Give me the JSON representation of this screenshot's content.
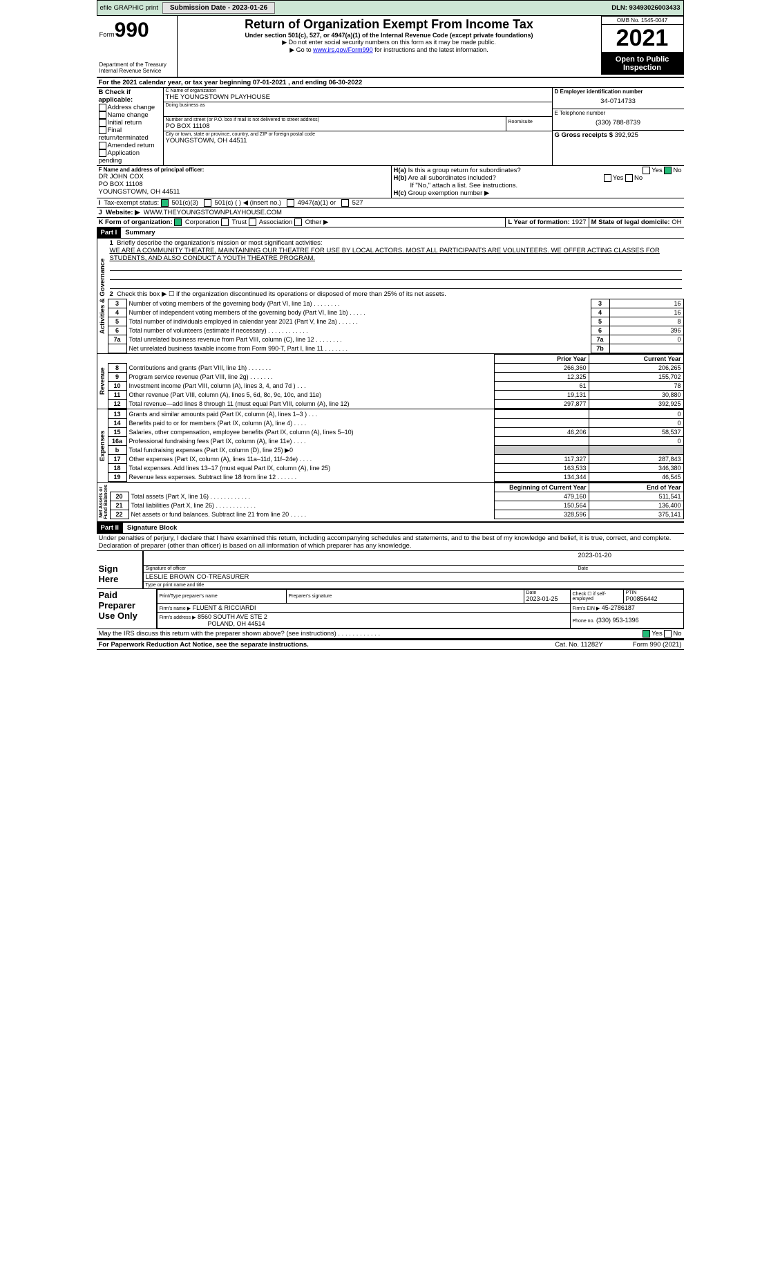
{
  "topbar": {
    "efile": "efile GRAPHIC print",
    "sub": "Submission Date - 2023-01-26",
    "dln": "DLN: 93493026003433"
  },
  "hdr": {
    "form": "Form",
    "n": "990",
    "title": "Return of Organization Exempt From Income Tax",
    "sub1": "Under section 501(c), 527, or 4947(a)(1) of the Internal Revenue Code (except private foundations)",
    "sub2": "▶ Do not enter social security numbers on this form as it may be made public.",
    "sub3": "▶ Go to ",
    "link": "www.irs.gov/Form990",
    "sub3b": " for instructions and the latest information.",
    "dept": "Department of the Treasury",
    "irs": "Internal Revenue Service",
    "omb": "OMB No. 1545-0047",
    "year": "2021",
    "open": "Open to Public",
    "insp": "Inspection"
  },
  "A": {
    "txt": "For the 2021 calendar year, or tax year beginning 07-01-2021   , and ending 06-30-2022"
  },
  "B": {
    "title": "B Check if applicable:",
    "opts": [
      "Address change",
      "Name change",
      "Initial return",
      "Final return/terminated",
      "Amended return",
      "Application pending"
    ]
  },
  "C": {
    "lbl": "C Name of organization",
    "org": "THE YOUNGSTOWN PLAYHOUSE",
    "dba": "Doing business as",
    "addr_lbl": "Number and street (or P.O. box if mail is not delivered to street address)",
    "room": "Room/suite",
    "addr": "PO BOX 11108",
    "city_lbl": "City or town, state or province, country, and ZIP or foreign postal code",
    "city": "YOUNGSTOWN, OH  44511"
  },
  "D": {
    "lbl": "D Employer identification number",
    "v": "34-0714733"
  },
  "E": {
    "lbl": "E Telephone number",
    "v": "(330) 788-8739"
  },
  "G": {
    "lbl": "G Gross receipts $",
    "v": "392,925"
  },
  "F": {
    "lbl": "F Name and address of principal officer:",
    "n": "DR JOHN COX",
    "a1": "PO BOX 11108",
    "a2": "YOUNGSTOWN, OH  44511"
  },
  "H": {
    "a": "Is this a group return for subordinates?",
    "b": "Are all subordinates included?",
    "bn": "If \"No,\" attach a list. See instructions.",
    "c": "Group exemption number ▶",
    "yes": "Yes",
    "no": "No"
  },
  "I": {
    "lbl": "Tax-exempt status:",
    "o1": "501(c)(3)",
    "o2": "501(c) (  ) ◀ (insert no.)",
    "o3": "4947(a)(1) or",
    "o4": "527"
  },
  "J": {
    "lbl": "Website: ▶",
    "v": "WWW.THEYOUNGSTOWNPLAYHOUSE.COM"
  },
  "K": {
    "lbl": "K Form of organization:",
    "o": [
      "Corporation",
      "Trust",
      "Association",
      "Other ▶"
    ]
  },
  "L": {
    "lbl": "L Year of formation:",
    "v": "1927"
  },
  "M": {
    "lbl": "M State of legal domicile:",
    "v": "OH"
  },
  "p1": {
    "hdr": "Part I",
    "ttl": "Summary",
    "l1": "Briefly describe the organization's mission or most significant activities:",
    "mission": "WE ARE A COMMUNITY THEATRE, MAINTAINING OUR THEATRE FOR USE BY LOCAL ACTORS. MOST ALL PARTICIPANTS ARE VOLUNTEERS. WE OFFER ACTING CLASSES FOR STUDENTS, AND ALSO CONDUCT A YOUTH THEATRE PROGRAM.",
    "l2": "Check this box ▶ ☐ if the organization discontinued its operations or disposed of more than 25% of its net assets.",
    "rows": [
      {
        "n": "3",
        "t": "Number of voting members of the governing body (Part VI, line 1a)   .    .    .    .    .    .    .    .",
        "bx": "3",
        "v": "16"
      },
      {
        "n": "4",
        "t": "Number of independent voting members of the governing body (Part VI, line 1b)   .    .    .    .    .",
        "bx": "4",
        "v": "16"
      },
      {
        "n": "5",
        "t": "Total number of individuals employed in calendar year 2021 (Part V, line 2a)   .    .    .    .    .    .",
        "bx": "5",
        "v": "8"
      },
      {
        "n": "6",
        "t": "Total number of volunteers (estimate if necessary)    .    .    .    .    .    .    .    .    .    .    .    .",
        "bx": "6",
        "v": "396"
      },
      {
        "n": "7a",
        "t": "Total unrelated business revenue from Part VIII, column (C), line 12   .    .    .    .    .    .    .    .",
        "bx": "7a",
        "v": "0"
      },
      {
        "n": "",
        "t": "Net unrelated business taxable income from Form 990-T, Part I, line 11   .    .    .    .    .    .    .",
        "bx": "7b",
        "v": ""
      }
    ]
  },
  "colhdr": {
    "py": "Prior Year",
    "cy": "Current Year"
  },
  "rev": [
    {
      "n": "8",
      "t": "Contributions and grants (Part VIII, line 1h)   .    .    .    .    .    .    .",
      "p": "266,360",
      "c": "206,265"
    },
    {
      "n": "9",
      "t": "Program service revenue (Part VIII, line 2g)   .    .    .    .    .    .    .",
      "p": "12,325",
      "c": "155,702"
    },
    {
      "n": "10",
      "t": "Investment income (Part VIII, column (A), lines 3, 4, and 7d )   .    .    .",
      "p": "61",
      "c": "78"
    },
    {
      "n": "11",
      "t": "Other revenue (Part VIII, column (A), lines 5, 6d, 8c, 9c, 10c, and 11e)",
      "p": "19,131",
      "c": "30,880"
    },
    {
      "n": "12",
      "t": "Total revenue—add lines 8 through 11 (must equal Part VIII, column (A), line 12)",
      "p": "297,877",
      "c": "392,925"
    }
  ],
  "exp": [
    {
      "n": "13",
      "t": "Grants and similar amounts paid (Part IX, column (A), lines 1–3 )   .    .    .",
      "p": "",
      "c": "0"
    },
    {
      "n": "14",
      "t": "Benefits paid to or for members (Part IX, column (A), line 4)   .    .    .    .",
      "p": "",
      "c": "0"
    },
    {
      "n": "15",
      "t": "Salaries, other compensation, employee benefits (Part IX, column (A), lines 5–10)",
      "p": "46,206",
      "c": "58,537"
    },
    {
      "n": "16a",
      "t": "Professional fundraising fees (Part IX, column (A), line 11e)   .    .    .    .",
      "p": "",
      "c": "0"
    },
    {
      "n": "b",
      "t": "Total fundraising expenses (Part IX, column (D), line 25) ▶0",
      "p": "__GRAY__",
      "c": "__GRAY__"
    },
    {
      "n": "17",
      "t": "Other expenses (Part IX, column (A), lines 11a–11d, 11f–24e)   .    .    .    .",
      "p": "117,327",
      "c": "287,843"
    },
    {
      "n": "18",
      "t": "Total expenses. Add lines 13–17 (must equal Part IX, column (A), line 25)",
      "p": "163,533",
      "c": "346,380"
    },
    {
      "n": "19",
      "t": "Revenue less expenses. Subtract line 18 from line 12   .    .    .    .    .    .",
      "p": "134,344",
      "c": "46,545"
    }
  ],
  "nethdr": {
    "b": "Beginning of Current Year",
    "e": "End of Year"
  },
  "net": [
    {
      "n": "20",
      "t": "Total assets (Part X, line 16)    .    .    .    .    .    .    .    .    .    .    .    .",
      "p": "479,160",
      "c": "511,541"
    },
    {
      "n": "21",
      "t": "Total liabilities (Part X, line 26)   .    .    .    .    .    .    .    .    .    .    .    .",
      "p": "150,564",
      "c": "136,400"
    },
    {
      "n": "22",
      "t": "Net assets or fund balances. Subtract line 21 from line 20   .    .    .    .    .",
      "p": "328,596",
      "c": "375,141"
    }
  ],
  "tabs": {
    "ag": "Activities & Governance",
    "rv": "Revenue",
    "ex": "Expenses",
    "na": "Net Assets or\nFund Balances"
  },
  "p2": {
    "hdr": "Part II",
    "ttl": "Signature Block",
    "pen": "Under penalties of perjury, I declare that I have examined this return, including accompanying schedules and statements, and to the best of my knowledge and belief, it is true, correct, and complete. Declaration of preparer (other than officer) is based on all information of which preparer has any knowledge.",
    "sign": "Sign Here",
    "sigof": "Signature of officer",
    "date": "Date",
    "sdate": "2023-01-20",
    "name": "LESLIE BROWN  CO-TREASURER",
    "typ": "Type or print name and title",
    "paid": "Paid Preparer Use Only",
    "ppn": "Print/Type preparer's name",
    "psig": "Preparer's signature",
    "pdate": "2023-01-25",
    "chk": "Check ☐ if self-employed",
    "ptin": "PTIN",
    "ptinv": "P00856442",
    "firm": "Firm's name     ▶",
    "firmv": "FLUENT & RICCIARDI",
    "fein": "Firm's EIN ▶",
    "feinv": "45-2786187",
    "faddr": "Firm's address ▶",
    "faddrv": "8560 SOUTH AVE STE 2",
    "faddr2": "POLAND, OH  44514",
    "phone": "Phone no.",
    "phonev": "(330) 953-1396",
    "may": "May the IRS discuss this return with the preparer shown above? (see instructions)   .    .    .    .    .    .    .    .    .    .    .    .",
    "yes": "Yes",
    "no": "No"
  },
  "foot": {
    "pra": "For Paperwork Reduction Act Notice, see the separate instructions.",
    "cat": "Cat. No. 11282Y",
    "ff": "Form 990 (2021)"
  }
}
